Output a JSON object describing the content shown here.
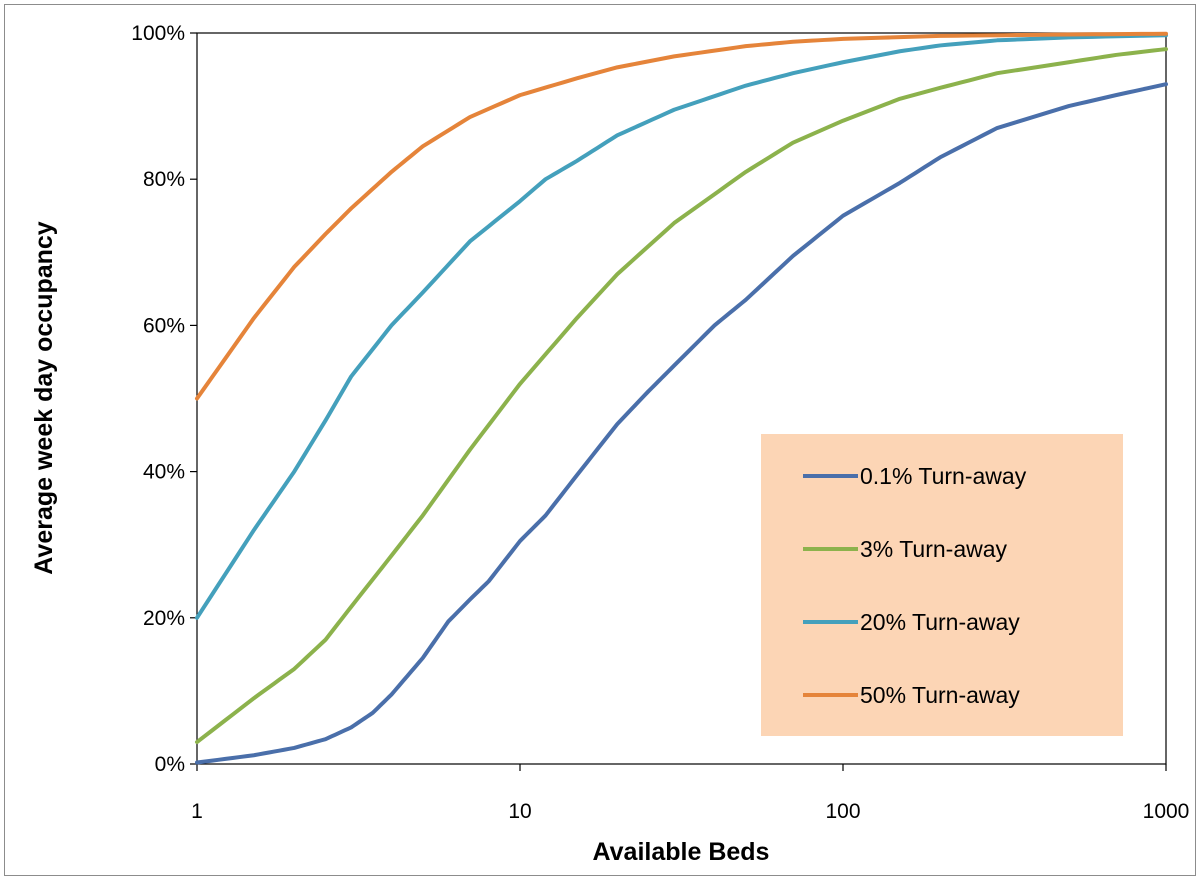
{
  "chart_data": {
    "type": "line",
    "title": "",
    "xlabel": "Available Beds",
    "ylabel": "Average week day occupancy",
    "x_scale": "log",
    "xlim": [
      1,
      1000
    ],
    "ylim": [
      0,
      100
    ],
    "x_ticks": [
      "1",
      "10",
      "100",
      "1000"
    ],
    "y_ticks": [
      "0%",
      "20%",
      "40%",
      "60%",
      "80%",
      "100%"
    ],
    "grid": false,
    "legend_position": "bottom-right",
    "legend_background": "#fcd5b5",
    "series": [
      {
        "name": "0.1% Turn-away",
        "color": "#4a6faa",
        "points": [
          [
            1,
            0.2
          ],
          [
            1.5,
            1.2
          ],
          [
            2,
            2.2
          ],
          [
            2.5,
            3.4
          ],
          [
            3,
            5
          ],
          [
            3.5,
            7
          ],
          [
            4,
            9.5
          ],
          [
            5,
            14.5
          ],
          [
            6,
            19.5
          ],
          [
            7,
            22.5
          ],
          [
            8,
            25
          ],
          [
            10,
            30.5
          ],
          [
            12,
            34
          ],
          [
            15,
            39.5
          ],
          [
            20,
            46.5
          ],
          [
            25,
            51
          ],
          [
            30,
            54.5
          ],
          [
            40,
            60
          ],
          [
            50,
            63.5
          ],
          [
            70,
            69.5
          ],
          [
            100,
            75
          ],
          [
            150,
            79.5
          ],
          [
            200,
            83
          ],
          [
            300,
            87
          ],
          [
            500,
            90
          ],
          [
            700,
            91.5
          ],
          [
            1000,
            93
          ]
        ]
      },
      {
        "name": "3% Turn-away",
        "color": "#8cb24c",
        "points": [
          [
            1,
            3
          ],
          [
            1.5,
            9
          ],
          [
            2,
            13
          ],
          [
            2.5,
            17
          ],
          [
            3,
            21.5
          ],
          [
            4,
            28.5
          ],
          [
            5,
            34
          ],
          [
            7,
            43
          ],
          [
            10,
            52
          ],
          [
            15,
            61
          ],
          [
            20,
            67
          ],
          [
            30,
            74
          ],
          [
            50,
            81
          ],
          [
            70,
            85
          ],
          [
            100,
            88
          ],
          [
            150,
            91
          ],
          [
            200,
            92.5
          ],
          [
            300,
            94.5
          ],
          [
            500,
            96
          ],
          [
            700,
            97
          ],
          [
            1000,
            97.8
          ]
        ]
      },
      {
        "name": "20% Turn-away",
        "color": "#44a0bc",
        "points": [
          [
            1,
            20
          ],
          [
            1.5,
            32
          ],
          [
            2,
            40
          ],
          [
            2.5,
            47
          ],
          [
            3,
            53
          ],
          [
            4,
            60
          ],
          [
            5,
            64.5
          ],
          [
            7,
            71.5
          ],
          [
            10,
            77
          ],
          [
            12,
            80
          ],
          [
            15,
            82.5
          ],
          [
            20,
            86
          ],
          [
            30,
            89.5
          ],
          [
            50,
            92.8
          ],
          [
            70,
            94.5
          ],
          [
            100,
            96
          ],
          [
            150,
            97.5
          ],
          [
            200,
            98.3
          ],
          [
            300,
            99
          ],
          [
            500,
            99.4
          ],
          [
            1000,
            99.7
          ]
        ]
      },
      {
        "name": "50% Turn-away",
        "color": "#e5843a",
        "points": [
          [
            1,
            50
          ],
          [
            1.5,
            61
          ],
          [
            2,
            68
          ],
          [
            2.5,
            72.5
          ],
          [
            3,
            76
          ],
          [
            4,
            81
          ],
          [
            5,
            84.5
          ],
          [
            7,
            88.5
          ],
          [
            10,
            91.5
          ],
          [
            15,
            93.8
          ],
          [
            20,
            95.3
          ],
          [
            30,
            96.8
          ],
          [
            50,
            98.2
          ],
          [
            70,
            98.8
          ],
          [
            100,
            99.2
          ],
          [
            200,
            99.6
          ],
          [
            500,
            99.8
          ],
          [
            1000,
            99.9
          ]
        ]
      }
    ]
  }
}
